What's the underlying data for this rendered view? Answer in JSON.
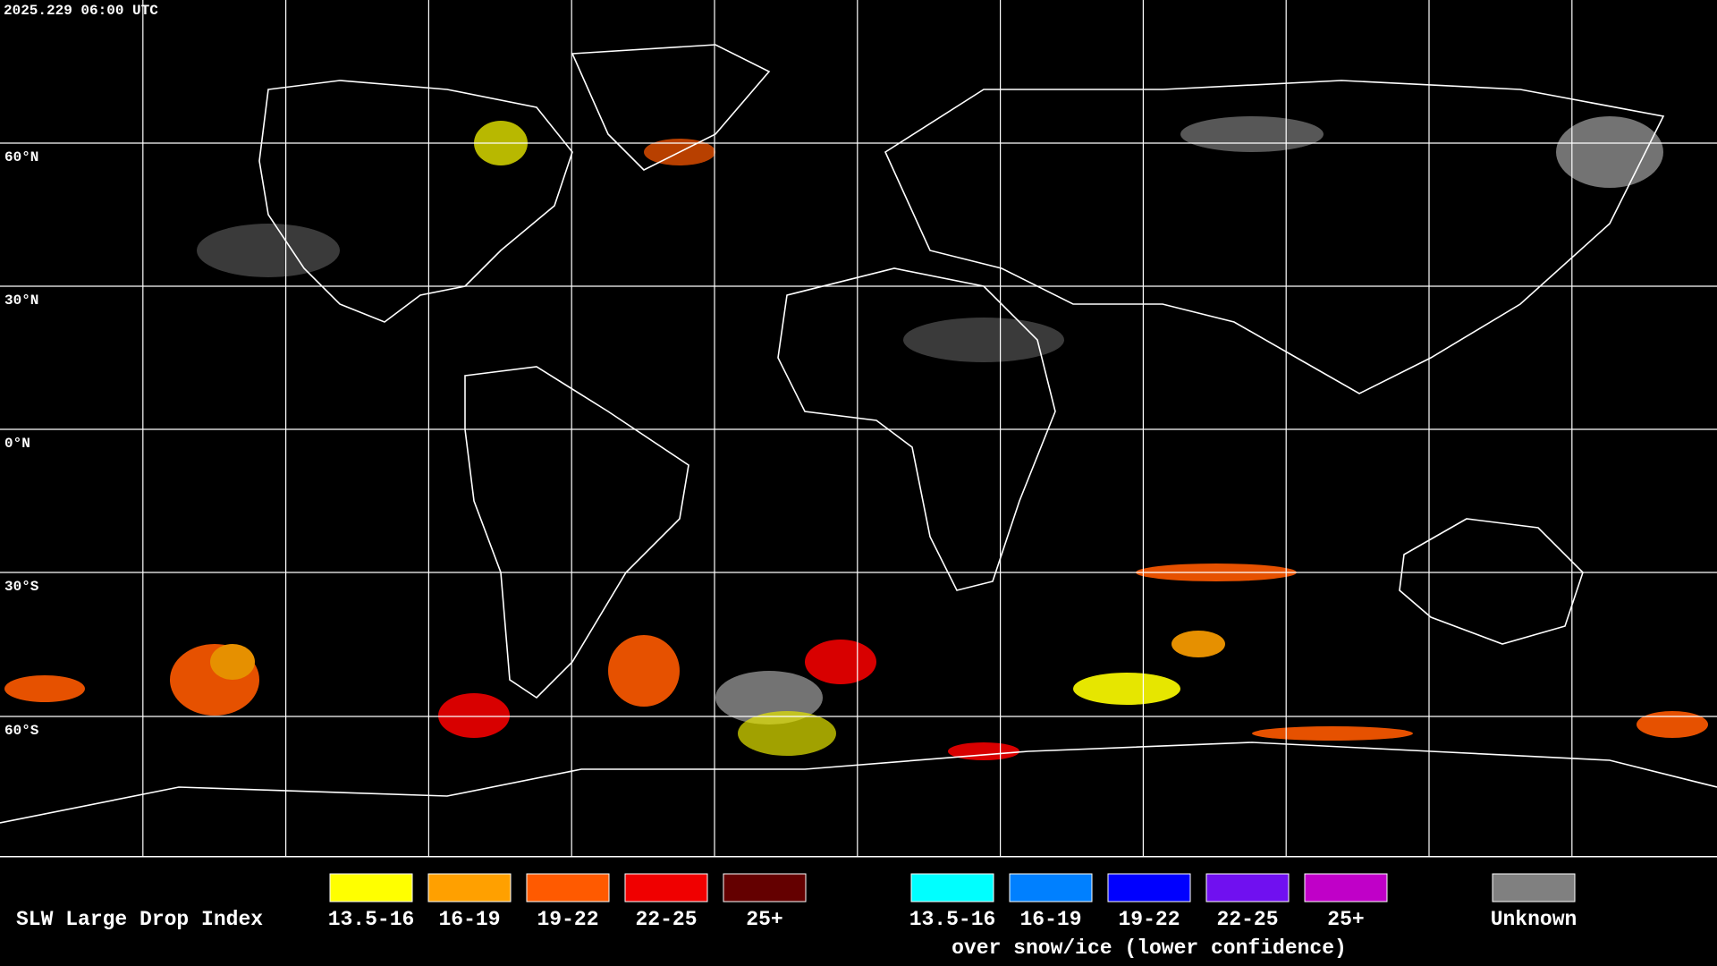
{
  "header": {
    "timestamp": "2025.229 06:00 UTC"
  },
  "map": {
    "latitude_labels": [
      "60°N",
      "30°N",
      "0°N",
      "30°S",
      "60°S"
    ]
  },
  "legend": {
    "title": "SLW Large Drop Index",
    "items": [
      {
        "label": "13.5-16",
        "color": "#ffff00"
      },
      {
        "label": "16-19",
        "color": "#ffa000"
      },
      {
        "label": "19-22",
        "color": "#ff5a00"
      },
      {
        "label": "22-25",
        "color": "#f00000"
      },
      {
        "label": "25+",
        "color": "#640000"
      }
    ],
    "snow_ice_items": [
      {
        "label": "13.5-16",
        "color": "#00ffff"
      },
      {
        "label": "16-19",
        "color": "#0080ff"
      },
      {
        "label": "19-22",
        "color": "#0000ff"
      },
      {
        "label": "22-25",
        "color": "#7010f0"
      },
      {
        "label": "25+",
        "color": "#c000c8"
      }
    ],
    "snow_ice_caption": "over snow/ice (lower confidence)",
    "unknown": {
      "label": "Unknown",
      "color": "#808080"
    }
  }
}
